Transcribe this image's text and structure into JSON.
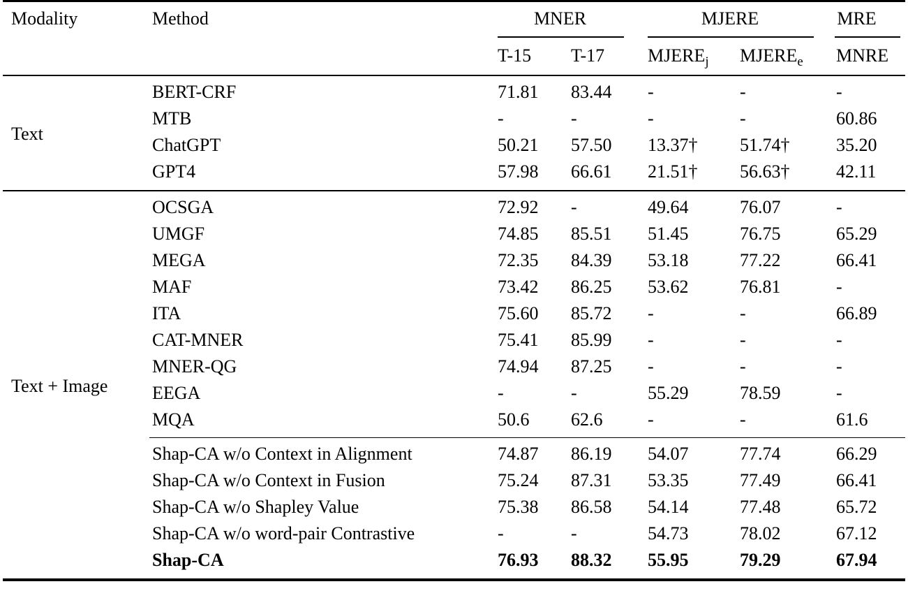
{
  "table": {
    "header": {
      "modality": "Modality",
      "method": "Method",
      "groups": [
        {
          "label": "MNER"
        },
        {
          "label": "MJERE"
        },
        {
          "label": "MRE"
        }
      ],
      "subcolumns": [
        {
          "text": "T-15",
          "sub": ""
        },
        {
          "text": "T-17",
          "sub": ""
        },
        {
          "text": "MJERE",
          "sub": "j"
        },
        {
          "text": "MJERE",
          "sub": "e"
        },
        {
          "text": "MNRE",
          "sub": ""
        }
      ]
    },
    "sections": [
      {
        "modality": "Text",
        "groups": [
          {
            "rows": [
              {
                "method": "BERT-CRF",
                "values": [
                  "71.81",
                  "83.44",
                  "-",
                  "-",
                  "-"
                ]
              },
              {
                "method": "MTB",
                "values": [
                  "-",
                  "-",
                  "-",
                  "-",
                  "60.86"
                ]
              },
              {
                "method": "ChatGPT",
                "values": [
                  "50.21",
                  "57.50",
                  "13.37†",
                  "51.74†",
                  "35.20"
                ]
              },
              {
                "method": "GPT4",
                "values": [
                  "57.98",
                  "66.61",
                  "21.51†",
                  "56.63†",
                  "42.11"
                ]
              }
            ]
          }
        ]
      },
      {
        "modality": "Text + Image",
        "groups": [
          {
            "rows": [
              {
                "method": "OCSGA",
                "values": [
                  "72.92",
                  "-",
                  "49.64",
                  "76.07",
                  "-"
                ]
              },
              {
                "method": "UMGF",
                "values": [
                  "74.85",
                  "85.51",
                  "51.45",
                  "76.75",
                  "65.29"
                ]
              },
              {
                "method": "MEGA",
                "values": [
                  "72.35",
                  "84.39",
                  "53.18",
                  "77.22",
                  "66.41"
                ]
              },
              {
                "method": "MAF",
                "values": [
                  "73.42",
                  "86.25",
                  "53.62",
                  "76.81",
                  "-"
                ]
              },
              {
                "method": "ITA",
                "values": [
                  "75.60",
                  "85.72",
                  "-",
                  "-",
                  "66.89"
                ]
              },
              {
                "method": "CAT-MNER",
                "values": [
                  "75.41",
                  "85.99",
                  "-",
                  "-",
                  "-"
                ]
              },
              {
                "method": "MNER-QG",
                "values": [
                  "74.94",
                  "87.25",
                  "-",
                  "-",
                  "-"
                ]
              },
              {
                "method": "EEGA",
                "values": [
                  "-",
                  "-",
                  "55.29",
                  "78.59",
                  "-"
                ]
              },
              {
                "method": "MQA",
                "values": [
                  "50.6",
                  "62.6",
                  "-",
                  "-",
                  "61.6"
                ]
              }
            ]
          },
          {
            "rows": [
              {
                "method": "Shap-CA w/o Context in Alignment",
                "values": [
                  "74.87",
                  "86.19",
                  "54.07",
                  "77.74",
                  "66.29"
                ]
              },
              {
                "method": "Shap-CA w/o Context in Fusion",
                "values": [
                  "75.24",
                  "87.31",
                  "53.35",
                  "77.49",
                  "66.41"
                ]
              },
              {
                "method": "Shap-CA w/o Shapley Value",
                "values": [
                  "75.38",
                  "86.58",
                  "54.14",
                  "77.48",
                  "65.72"
                ]
              },
              {
                "method": "Shap-CA w/o word-pair Contrastive",
                "values": [
                  "-",
                  "-",
                  "54.73",
                  "78.02",
                  "67.12"
                ]
              },
              {
                "method": "Shap-CA",
                "bold": true,
                "values": [
                  "76.93",
                  "88.32",
                  "55.95",
                  "79.29",
                  "67.94"
                ]
              }
            ]
          }
        ]
      }
    ]
  }
}
